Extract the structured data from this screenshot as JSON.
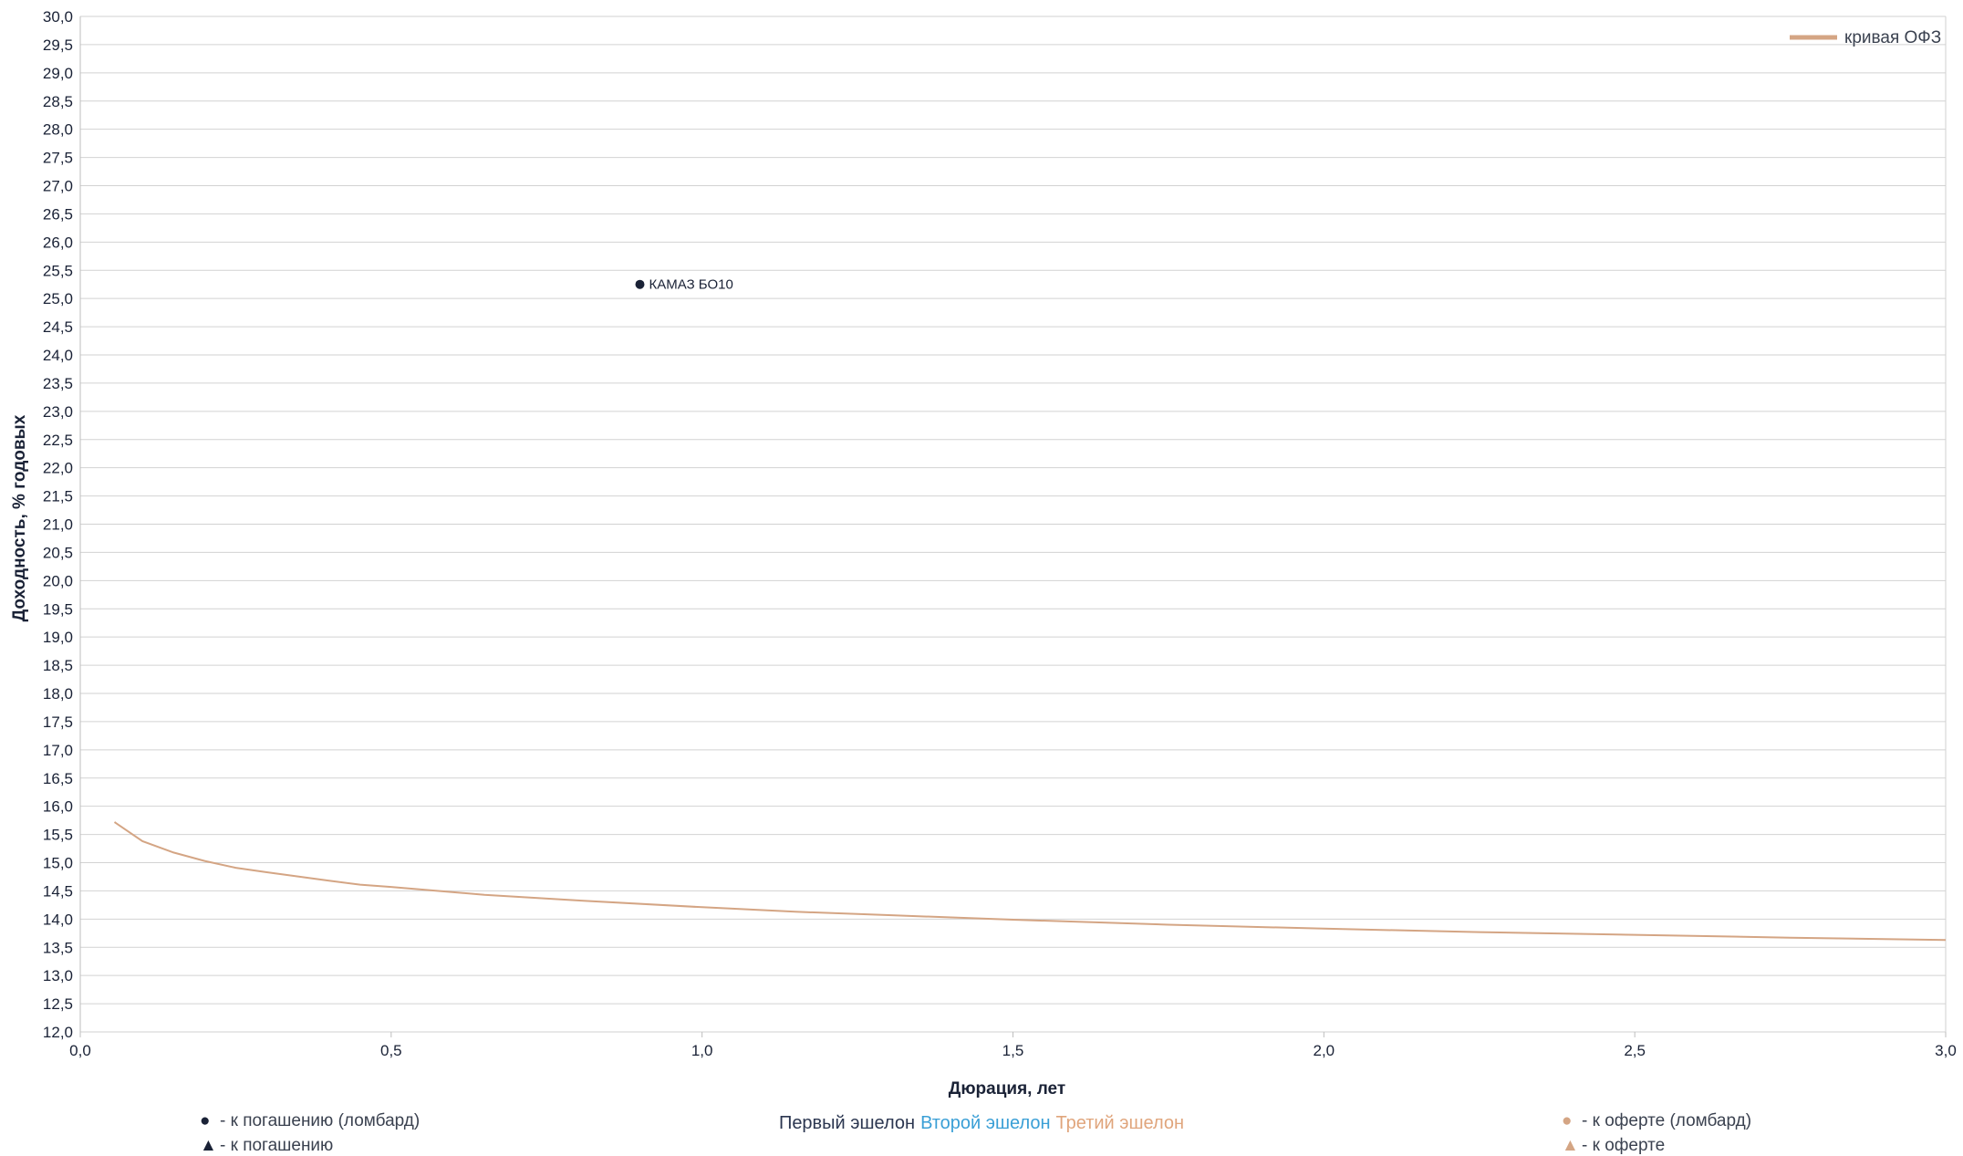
{
  "chart_data": {
    "type": "scatter",
    "title": "",
    "xlabel": "Дюрация, лет",
    "ylabel": "Доходность, % годовых",
    "xlim": [
      0,
      3
    ],
    "ylim": [
      12,
      30
    ],
    "x_ticks": [
      "0,0",
      "0,5",
      "1,0",
      "1,5",
      "2,0",
      "2,5",
      "3,0"
    ],
    "y_ticks": [
      "12,0",
      "12,5",
      "13,0",
      "13,5",
      "14,0",
      "14,5",
      "15,0",
      "15,5",
      "16,0",
      "16,5",
      "17,0",
      "17,5",
      "18,0",
      "18,5",
      "19,0",
      "19,5",
      "20,0",
      "20,5",
      "21,0",
      "21,5",
      "22,0",
      "22,5",
      "23,0",
      "23,5",
      "24,0",
      "24,5",
      "25,0",
      "25,5",
      "26,0",
      "26,5",
      "27,0",
      "27,5",
      "28,0",
      "28,5",
      "29,0",
      "29,5",
      "30,0"
    ],
    "grid": true,
    "legend_position": "top-right",
    "series": [
      {
        "name": "кривая ОФЗ",
        "kind": "line",
        "color": "#d4a584",
        "points": [
          [
            0.055,
            15.72
          ],
          [
            0.1,
            15.38
          ],
          [
            0.15,
            15.18
          ],
          [
            0.2,
            15.03
          ],
          [
            0.25,
            14.91
          ],
          [
            0.3,
            14.83
          ],
          [
            0.4,
            14.68
          ],
          [
            0.45,
            14.61
          ],
          [
            0.5,
            14.57
          ],
          [
            0.65,
            14.43
          ],
          [
            0.8,
            14.33
          ],
          [
            1.0,
            14.21
          ],
          [
            1.15,
            14.13
          ],
          [
            1.3,
            14.07
          ],
          [
            1.5,
            13.99
          ],
          [
            1.75,
            13.9
          ],
          [
            2.0,
            13.83
          ],
          [
            2.25,
            13.77
          ],
          [
            2.5,
            13.72
          ],
          [
            2.75,
            13.67
          ],
          [
            3.0,
            13.63
          ]
        ]
      },
      {
        "kind": "scatter",
        "marker": "circle",
        "color": "#1a2236",
        "points": [
          {
            "x": 0.9,
            "y": 25.25,
            "label": "КАМАЗ БО10"
          }
        ]
      }
    ]
  },
  "keys": {
    "left": [
      {
        "glyph": "●",
        "text": "- к погашению (ломбард)",
        "color": "#1a2236"
      },
      {
        "glyph": "▲",
        "text": "- к погашению",
        "color": "#1a2236"
      }
    ],
    "right": [
      {
        "glyph": "●",
        "text": "- к оферте (ломбард)",
        "color": "#d4a584"
      },
      {
        "glyph": "▲",
        "text": "- к оферте",
        "color": "#d4a584"
      }
    ]
  },
  "echelons": [
    {
      "text": "Первый эшелон",
      "color": "#2b3650"
    },
    {
      "text": "Второй эшелон",
      "color": "#3a9fd6"
    },
    {
      "text": "Третий эшелон",
      "color": "#e0a57c"
    }
  ]
}
